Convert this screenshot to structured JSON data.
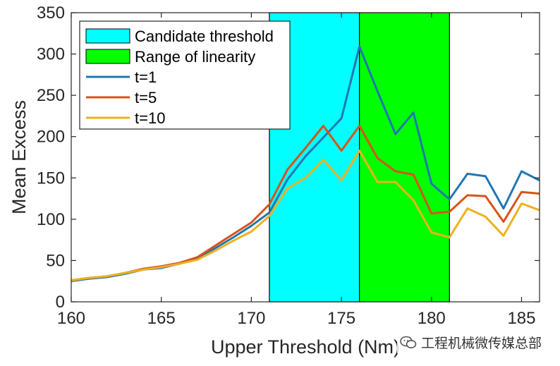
{
  "chart_data": {
    "type": "line",
    "xlabel": "Upper Threshold (Nm)",
    "ylabel": "Mean Excess",
    "xlim": [
      160,
      186
    ],
    "ylim": [
      0,
      350
    ],
    "xticks": [
      "160",
      "165",
      "170",
      "175",
      "180",
      "185"
    ],
    "yticks": [
      "0",
      "50",
      "100",
      "150",
      "200",
      "250",
      "300",
      "350"
    ],
    "x": [
      160,
      161,
      162,
      163,
      164,
      165,
      166,
      167,
      168,
      169,
      170,
      171,
      172,
      173,
      174,
      175,
      176,
      177,
      178,
      179,
      180,
      181,
      182,
      183,
      184,
      185,
      186
    ],
    "series": [
      {
        "name": "t=1",
        "color": "#1f77b4",
        "values": [
          25,
          28,
          30,
          34,
          39,
          41,
          46,
          53,
          65,
          78,
          92,
          108,
          148,
          176,
          199,
          222,
          309,
          255,
          203,
          229,
          143,
          124,
          155,
          152,
          113,
          158,
          147
        ]
      },
      {
        "name": "t=5",
        "color": "#d95319",
        "values": [
          26,
          29,
          31,
          35,
          40,
          43,
          47,
          54,
          68,
          82,
          96,
          118,
          160,
          186,
          213,
          183,
          213,
          174,
          158,
          154,
          107,
          109,
          129,
          128,
          97,
          133,
          131
        ]
      },
      {
        "name": "t=10",
        "color": "#edb120",
        "values": [
          26,
          29,
          31,
          35,
          39,
          42,
          46,
          51,
          62,
          74,
          85,
          104,
          137,
          150,
          172,
          147,
          183,
          145,
          145,
          123,
          84,
          78,
          113,
          103,
          80,
          119,
          111
        ]
      }
    ],
    "regions": [
      {
        "label": "Candidate threshold",
        "from": 171,
        "to": 176,
        "color": "#00ffff"
      },
      {
        "label": "Range of linearity",
        "from": 176,
        "to": 181,
        "color": "#00ff00"
      }
    ],
    "legend": {
      "position": "top-left",
      "items": [
        "Candidate threshold",
        "Range of linearity",
        "t=1",
        "t=5",
        "t=10"
      ]
    },
    "grid": false
  },
  "watermark": {
    "text": "工程机械微传媒总部",
    "icon": "wechat-icon"
  }
}
